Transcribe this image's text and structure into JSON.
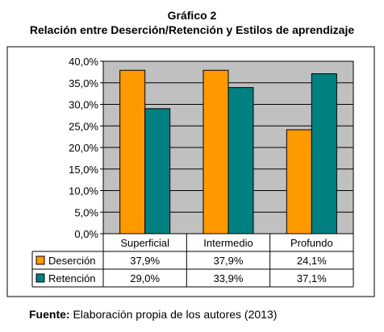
{
  "title": "Gráfico 2",
  "subtitle": "Relación entre Deserción/Retención y Estilos de aprendizaje",
  "source": {
    "label": "Fuente:",
    "text": "Elaboración propia de los autores (2013)"
  },
  "colors": {
    "plot_bg": "#c0c0c0",
    "desercion": "#ff9900",
    "retencion": "#008080",
    "frame": "#000000"
  },
  "chart_data": {
    "type": "bar",
    "categories": [
      "Superficial",
      "Intermedio",
      "Profundo"
    ],
    "series": [
      {
        "name": "Deserción",
        "values": [
          37.9,
          37.9,
          24.1
        ],
        "labels": [
          "37,9%",
          "37,9%",
          "24,1%"
        ],
        "color": "#ff9900"
      },
      {
        "name": "Retención",
        "values": [
          29.0,
          33.9,
          37.1
        ],
        "labels": [
          "29,0%",
          "33,9%",
          "37,1%"
        ],
        "color": "#008080"
      }
    ],
    "ylim": [
      0,
      40
    ],
    "yticks": [
      "0,0%",
      "5,0%",
      "10,0%",
      "15,0%",
      "20,0%",
      "25,0%",
      "30,0%",
      "35,0%",
      "40,0%"
    ],
    "grid": true,
    "legend": "data-table",
    "title": "Gráfico 2",
    "subtitle": "Relación entre Deserción/Retención y Estilos de aprendizaje"
  }
}
